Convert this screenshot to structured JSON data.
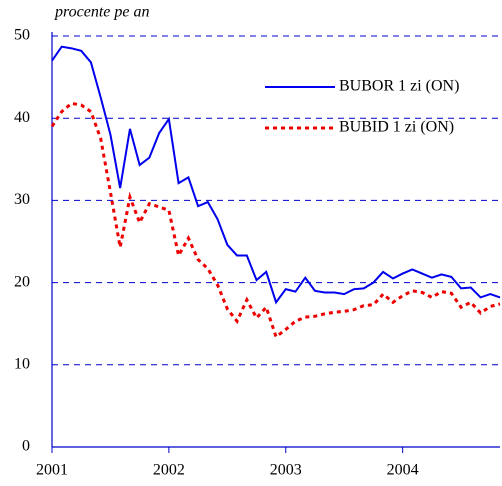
{
  "chart_data": {
    "type": "line",
    "y_label": "procente pe an",
    "x": [
      2001,
      2001.083,
      2001.167,
      2001.25,
      2001.333,
      2001.417,
      2001.5,
      2001.583,
      2001.667,
      2001.75,
      2001.833,
      2001.917,
      2002,
      2002.083,
      2002.167,
      2002.25,
      2002.333,
      2002.417,
      2002.5,
      2002.583,
      2002.667,
      2002.75,
      2002.833,
      2002.917,
      2003,
      2003.083,
      2003.167,
      2003.25,
      2003.333,
      2003.417,
      2003.5,
      2003.583,
      2003.667,
      2003.75,
      2003.833,
      2003.917,
      2004,
      2004.083,
      2004.167,
      2004.25,
      2004.333,
      2004.417,
      2004.5,
      2004.583,
      2004.667,
      2004.75,
      2004.833
    ],
    "series": [
      {
        "name": "BUBOR 1 zi (ON)",
        "color": "#0000ee",
        "dash": "solid",
        "values": [
          47.0,
          48.7,
          48.5,
          48.2,
          46.8,
          42.5,
          38,
          31.5,
          38.7,
          34.3,
          35.2,
          38.2,
          39.9,
          32.1,
          32.8,
          29.3,
          29.8,
          27.7,
          24.6,
          23.3,
          23.3,
          20.3,
          21.3,
          17.6,
          19.2,
          18.9,
          20.6,
          19.0,
          18.8,
          18.8,
          18.6,
          19.2,
          19.3,
          20.0,
          21.3,
          20.5,
          21.1,
          21.6,
          21.1,
          20.6,
          21.0,
          20.7,
          19.3,
          19.4,
          18.2,
          18.6,
          18.2
        ]
      },
      {
        "name": "BUBID 1 zi (ON)",
        "color": "#ee0000",
        "dash": "dotted",
        "values": [
          39.0,
          40.8,
          41.8,
          41.6,
          40.8,
          37.5,
          31,
          24.3,
          30.4,
          27.3,
          29.6,
          29.2,
          28.8,
          23.3,
          25.4,
          22.8,
          21.7,
          19.7,
          16.8,
          15.3,
          17.9,
          15.7,
          17.0,
          13.4,
          14.3,
          15.3,
          15.8,
          15.9,
          16.2,
          16.4,
          16.5,
          16.7,
          17.2,
          17.3,
          18.6,
          17.6,
          18.4,
          19.0,
          18.8,
          18.2,
          18.9,
          18.7,
          17.0,
          17.6,
          16.3,
          17.1,
          17.4
        ]
      }
    ],
    "xlim": [
      2001,
      2004.833
    ],
    "xticks": [
      2001,
      2002,
      2003,
      2004
    ],
    "ylim": [
      0,
      50
    ],
    "yticks": [
      0,
      10,
      20,
      30,
      40,
      50
    ],
    "grid": true,
    "legend": "upper right"
  }
}
